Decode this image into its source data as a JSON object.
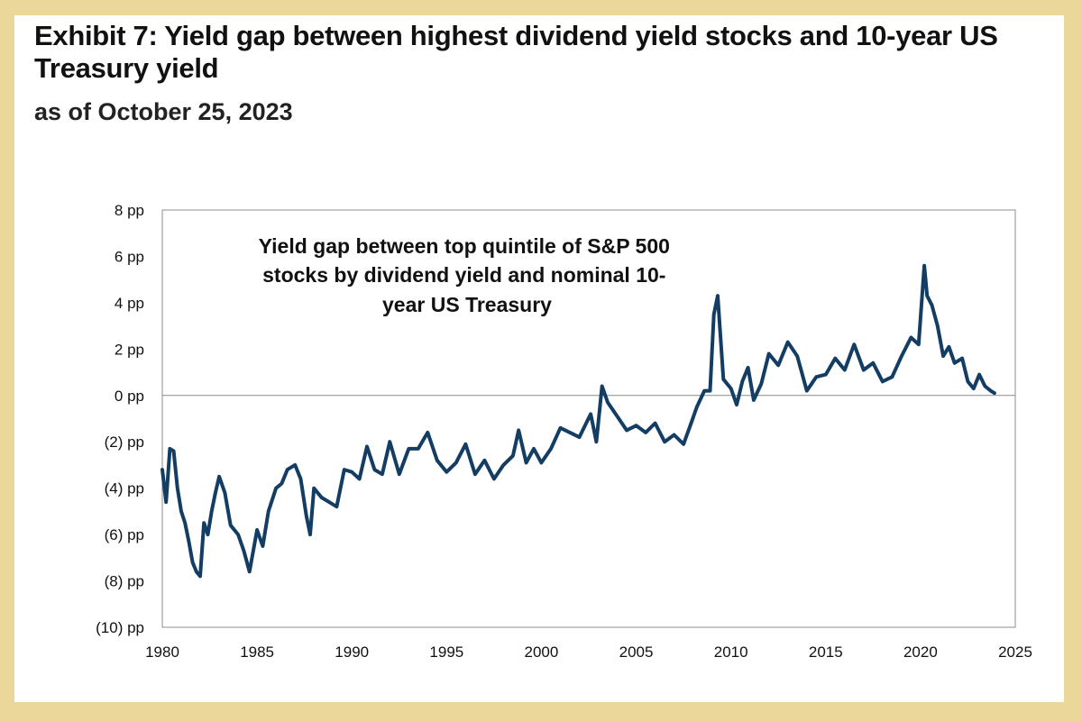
{
  "chart_data": {
    "type": "line",
    "title": "Exhibit 7: Yield gap between highest dividend yield stocks and 10-year US Treasury yield",
    "subtitle": "as of October 25, 2023",
    "annotation": [
      "Yield gap between top quintile of S&P 500",
      "stocks by dividend yield and nominal 10-",
      "year US Treasury"
    ],
    "xlabel": "",
    "ylabel": "",
    "xlim": [
      1980,
      2025
    ],
    "ylim": [
      -10,
      8
    ],
    "x_ticks": [
      1980,
      1985,
      1990,
      1995,
      2000,
      2005,
      2010,
      2015,
      2020,
      2025
    ],
    "x_tick_labels": [
      "1980",
      "1985",
      "1990",
      "1995",
      "2000",
      "2005",
      "2010",
      "2015",
      "2020",
      "2025"
    ],
    "y_ticks": [
      8,
      6,
      4,
      2,
      0,
      -2,
      -4,
      -6,
      -8,
      -10
    ],
    "y_tick_labels": [
      "8 pp",
      "6 pp",
      "4 pp",
      "2 pp",
      "0 pp",
      "(2) pp",
      "(4) pp",
      "(6) pp",
      "(8) pp",
      "(10) pp"
    ],
    "grid": false,
    "zero_line": true,
    "line_color": "#143d64",
    "series": [
      {
        "x": [
          1980.0,
          1980.2,
          1980.4,
          1980.6,
          1980.8,
          1981.0,
          1981.2,
          1981.4,
          1981.6,
          1981.8,
          1982.0,
          1982.2,
          1982.4,
          1982.6,
          1982.8,
          1983.0,
          1983.3,
          1983.6,
          1984.0,
          1984.3,
          1984.6,
          1985.0,
          1985.3,
          1985.6,
          1986.0,
          1986.3,
          1986.6,
          1987.0,
          1987.3,
          1987.6,
          1987.8,
          1988.0,
          1988.4,
          1988.8,
          1989.2,
          1989.6,
          1990.0,
          1990.4,
          1990.8,
          1991.2,
          1991.6,
          1992.0,
          1992.5,
          1993.0,
          1993.5,
          1994.0,
          1994.5,
          1995.0,
          1995.5,
          1996.0,
          1996.5,
          1997.0,
          1997.5,
          1998.0,
          1998.5,
          1998.8,
          1999.2,
          1999.6,
          2000.0,
          2000.5,
          2001.0,
          2001.5,
          2002.0,
          2002.3,
          2002.6,
          2002.9,
          2003.2,
          2003.5,
          2004.0,
          2004.5,
          2005.0,
          2005.5,
          2006.0,
          2006.5,
          2007.0,
          2007.5,
          2007.9,
          2008.2,
          2008.6,
          2008.9,
          2009.1,
          2009.3,
          2009.6,
          2010.0,
          2010.3,
          2010.6,
          2010.9,
          2011.2,
          2011.6,
          2012.0,
          2012.5,
          2013.0,
          2013.5,
          2014.0,
          2014.5,
          2015.0,
          2015.5,
          2016.0,
          2016.5,
          2017.0,
          2017.5,
          2018.0,
          2018.5,
          2019.0,
          2019.5,
          2019.9,
          2020.2,
          2020.35,
          2020.6,
          2020.9,
          2021.2,
          2021.5,
          2021.8,
          2022.2,
          2022.5,
          2022.8,
          2023.1,
          2023.4,
          2023.7,
          2023.9
        ],
        "y": [
          -3.2,
          -4.6,
          -2.3,
          -2.4,
          -4.0,
          -5.0,
          -5.5,
          -6.3,
          -7.2,
          -7.6,
          -7.8,
          -5.5,
          -6.0,
          -5.0,
          -4.2,
          -3.5,
          -4.2,
          -5.6,
          -6.0,
          -6.7,
          -7.6,
          -5.8,
          -6.5,
          -5.0,
          -4.0,
          -3.8,
          -3.2,
          -3.0,
          -3.6,
          -5.2,
          -6.0,
          -4.0,
          -4.4,
          -4.6,
          -4.8,
          -3.2,
          -3.3,
          -3.6,
          -2.2,
          -3.2,
          -3.4,
          -2.0,
          -3.4,
          -2.3,
          -2.3,
          -1.6,
          -2.8,
          -3.3,
          -2.9,
          -2.1,
          -3.4,
          -2.8,
          -3.6,
          -3.0,
          -2.6,
          -1.5,
          -2.9,
          -2.3,
          -2.9,
          -2.3,
          -1.4,
          -1.6,
          -1.8,
          -1.3,
          -0.8,
          -2.0,
          0.4,
          -0.3,
          -0.9,
          -1.5,
          -1.3,
          -1.6,
          -1.2,
          -2.0,
          -1.7,
          -2.1,
          -1.2,
          -0.5,
          0.2,
          0.2,
          3.5,
          4.3,
          0.7,
          0.3,
          -0.4,
          0.6,
          1.2,
          -0.2,
          0.5,
          1.8,
          1.3,
          2.3,
          1.7,
          0.2,
          0.8,
          0.9,
          1.6,
          1.1,
          2.2,
          1.1,
          1.4,
          0.6,
          0.8,
          1.7,
          2.5,
          2.2,
          5.6,
          4.3,
          3.9,
          3.0,
          1.7,
          2.1,
          1.4,
          1.6,
          0.6,
          0.3,
          0.9,
          0.4,
          0.2,
          0.1
        ]
      }
    ]
  }
}
